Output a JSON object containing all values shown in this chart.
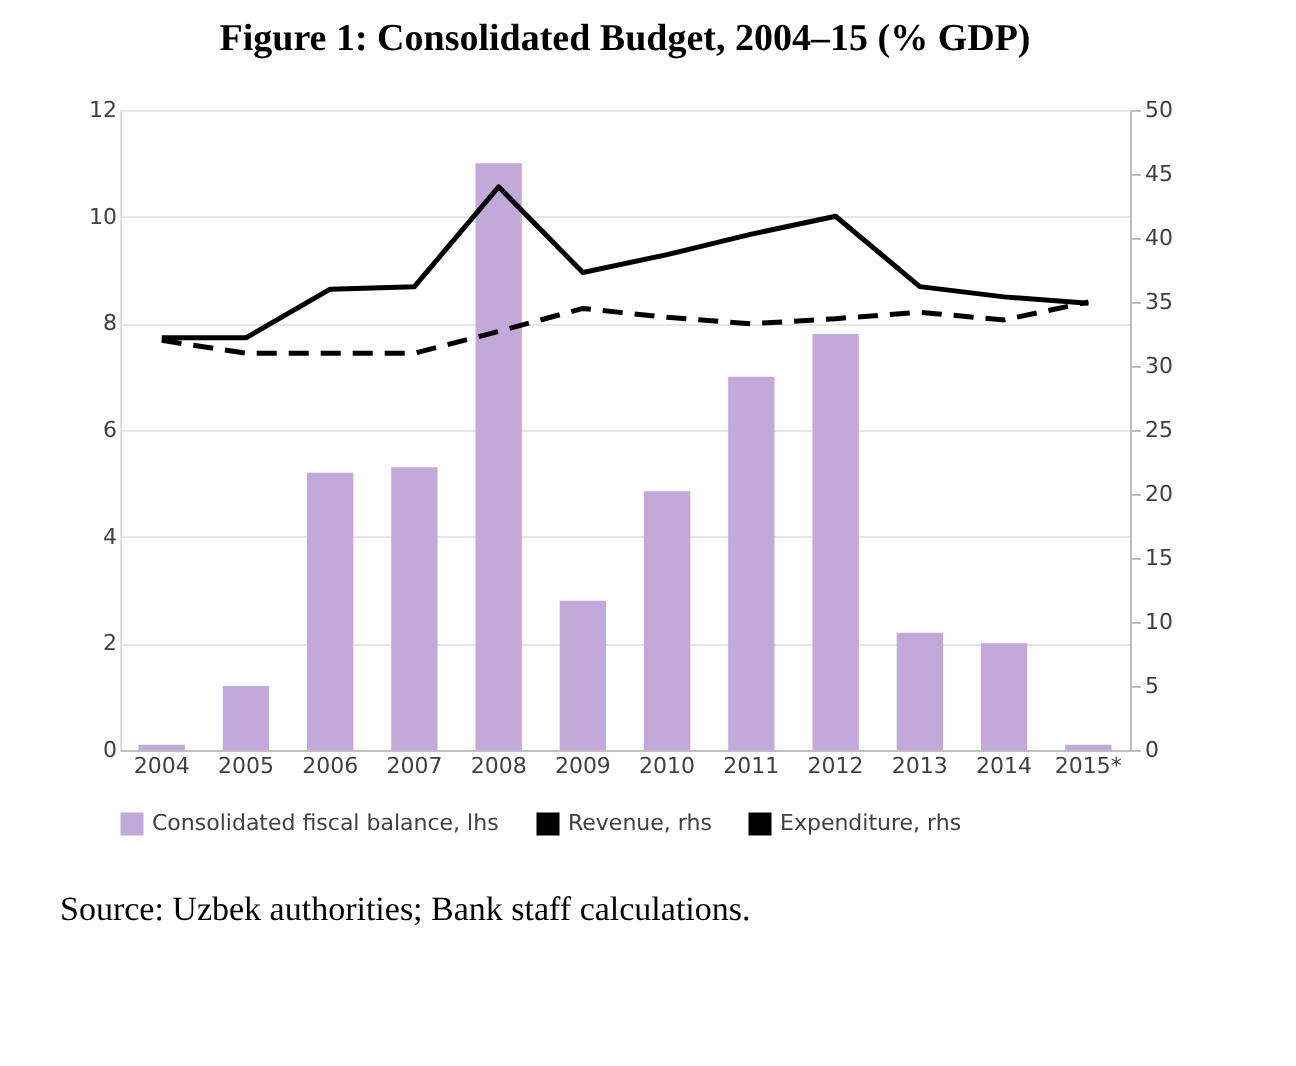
{
  "chart_data": {
    "type": "bar",
    "title": "Figure 1: Consolidated Budget, 2004–15 (% GDP)",
    "categories": [
      "2004",
      "2005",
      "2006",
      "2007",
      "2008",
      "2009",
      "2010",
      "2011",
      "2012",
      "2013",
      "2014",
      "2015*"
    ],
    "series": [
      {
        "name": "Consolidated fiscal balance, lhs",
        "color": "#c3a9d9",
        "values": [
          0.1,
          1.2,
          5.2,
          5.3,
          11.0,
          2.8,
          4.85,
          7.0,
          7.8,
          2.2,
          2.0,
          0.1
        ]
      },
      {
        "name": "Revenue, rhs",
        "type": "line",
        "axis": "y2",
        "line_style": "solid",
        "color": "#000000",
        "values": [
          32.2,
          32.2,
          36.0,
          36.2,
          44.0,
          37.3,
          38.7,
          40.3,
          41.7,
          36.2,
          35.4,
          34.9
        ]
      },
      {
        "name": "Expenditure, rhs",
        "type": "line",
        "axis": "y2",
        "line_style": "dashed",
        "color": "#000000",
        "values": [
          32.0,
          31.0,
          31.0,
          31.0,
          32.7,
          34.5,
          33.8,
          33.3,
          33.7,
          34.2,
          33.6,
          35.0
        ]
      }
    ],
    "ylim": [
      0,
      12
    ],
    "yticks": [
      0,
      2,
      4,
      6,
      8,
      10,
      12
    ],
    "y2lim": [
      0,
      50
    ],
    "y2ticks": [
      0,
      5,
      10,
      15,
      20,
      25,
      30,
      35,
      40,
      45,
      50
    ],
    "grid": "y",
    "legend": "bottom",
    "annotations": [
      "Source: Uzbek authorities; Bank staff calculations."
    ]
  }
}
